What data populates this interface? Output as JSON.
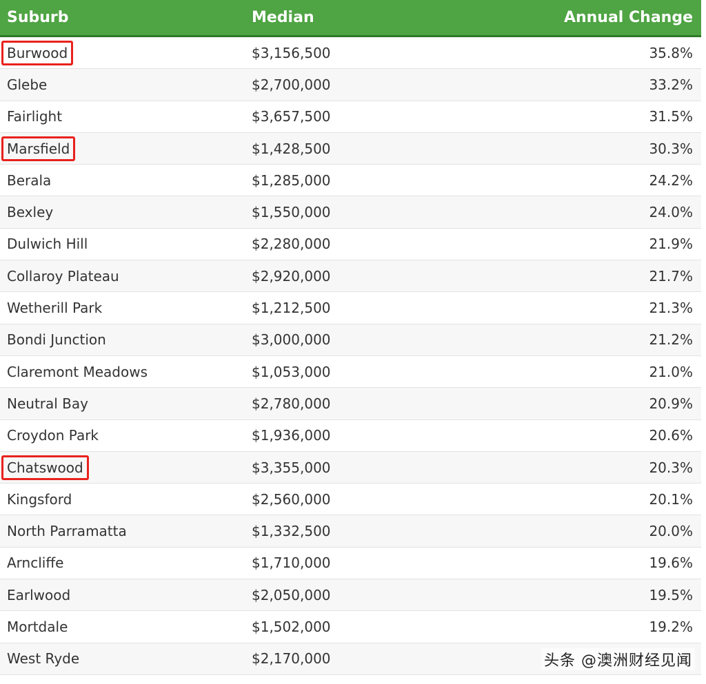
{
  "header": {
    "suburb": "Suburb",
    "median": "Median",
    "change": "Annual Change"
  },
  "colors": {
    "header_bg": "#4fa443",
    "highlight": "#e8211c"
  },
  "rows": [
    {
      "suburb": "Burwood",
      "median": "$3,156,500",
      "change": "35.8%",
      "highlighted": true
    },
    {
      "suburb": "Glebe",
      "median": "$2,700,000",
      "change": "33.2%",
      "highlighted": false
    },
    {
      "suburb": "Fairlight",
      "median": "$3,657,500",
      "change": "31.5%",
      "highlighted": false
    },
    {
      "suburb": "Marsfield",
      "median": "$1,428,500",
      "change": "30.3%",
      "highlighted": true
    },
    {
      "suburb": "Berala",
      "median": "$1,285,000",
      "change": "24.2%",
      "highlighted": false
    },
    {
      "suburb": "Bexley",
      "median": "$1,550,000",
      "change": "24.0%",
      "highlighted": false
    },
    {
      "suburb": "Dulwich Hill",
      "median": "$2,280,000",
      "change": "21.9%",
      "highlighted": false
    },
    {
      "suburb": "Collaroy Plateau",
      "median": "$2,920,000",
      "change": "21.7%",
      "highlighted": false
    },
    {
      "suburb": "Wetherill Park",
      "median": "$1,212,500",
      "change": "21.3%",
      "highlighted": false
    },
    {
      "suburb": "Bondi Junction",
      "median": "$3,000,000",
      "change": "21.2%",
      "highlighted": false
    },
    {
      "suburb": "Claremont Meadows",
      "median": "$1,053,000",
      "change": "21.0%",
      "highlighted": false
    },
    {
      "suburb": "Neutral Bay",
      "median": "$2,780,000",
      "change": "20.9%",
      "highlighted": false
    },
    {
      "suburb": "Croydon Park",
      "median": "$1,936,000",
      "change": "20.6%",
      "highlighted": false
    },
    {
      "suburb": "Chatswood",
      "median": "$3,355,000",
      "change": "20.3%",
      "highlighted": true
    },
    {
      "suburb": "Kingsford",
      "median": "$2,560,000",
      "change": "20.1%",
      "highlighted": false
    },
    {
      "suburb": "North Parramatta",
      "median": "$1,332,500",
      "change": "20.0%",
      "highlighted": false
    },
    {
      "suburb": "Arncliffe",
      "median": "$1,710,000",
      "change": "19.6%",
      "highlighted": false
    },
    {
      "suburb": "Earlwood",
      "median": "$2,050,000",
      "change": "19.5%",
      "highlighted": false
    },
    {
      "suburb": "Mortdale",
      "median": "$1,502,000",
      "change": "19.2%",
      "highlighted": false
    },
    {
      "suburb": "West Ryde",
      "median": "$2,170,000",
      "change": "",
      "highlighted": false
    }
  ],
  "watermark": "头条 @澳洲财经见闻"
}
